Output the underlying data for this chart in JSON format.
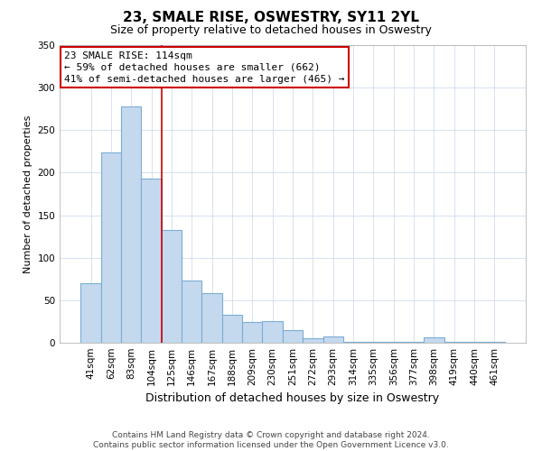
{
  "title": "23, SMALE RISE, OSWESTRY, SY11 2YL",
  "subtitle": "Size of property relative to detached houses in Oswestry",
  "xlabel": "Distribution of detached houses by size in Oswestry",
  "ylabel": "Number of detached properties",
  "categories": [
    "41sqm",
    "62sqm",
    "83sqm",
    "104sqm",
    "125sqm",
    "146sqm",
    "167sqm",
    "188sqm",
    "209sqm",
    "230sqm",
    "251sqm",
    "272sqm",
    "293sqm",
    "314sqm",
    "335sqm",
    "356sqm",
    "377sqm",
    "398sqm",
    "419sqm",
    "440sqm",
    "461sqm"
  ],
  "values": [
    70,
    224,
    278,
    193,
    133,
    73,
    58,
    33,
    24,
    25,
    15,
    5,
    7,
    1,
    1,
    1,
    1,
    6,
    1,
    1,
    1
  ],
  "bar_color": "#c5d9ee",
  "bar_edge_color": "#7aadd4",
  "vline_color": "#cc0000",
  "annotation_text": "23 SMALE RISE: 114sqm\n← 59% of detached houses are smaller (662)\n41% of semi-detached houses are larger (465) →",
  "annotation_box_color": "#ffffff",
  "annotation_box_edge": "#cc0000",
  "ylim": [
    0,
    350
  ],
  "yticks": [
    0,
    50,
    100,
    150,
    200,
    250,
    300,
    350
  ],
  "footer_text": "Contains HM Land Registry data © Crown copyright and database right 2024.\nContains public sector information licensed under the Open Government Licence v3.0.",
  "title_fontsize": 11,
  "subtitle_fontsize": 9,
  "xlabel_fontsize": 9,
  "ylabel_fontsize": 8,
  "tick_fontsize": 7.5,
  "annotation_fontsize": 8,
  "footer_fontsize": 6.5,
  "grid_color": "#d0dcee"
}
